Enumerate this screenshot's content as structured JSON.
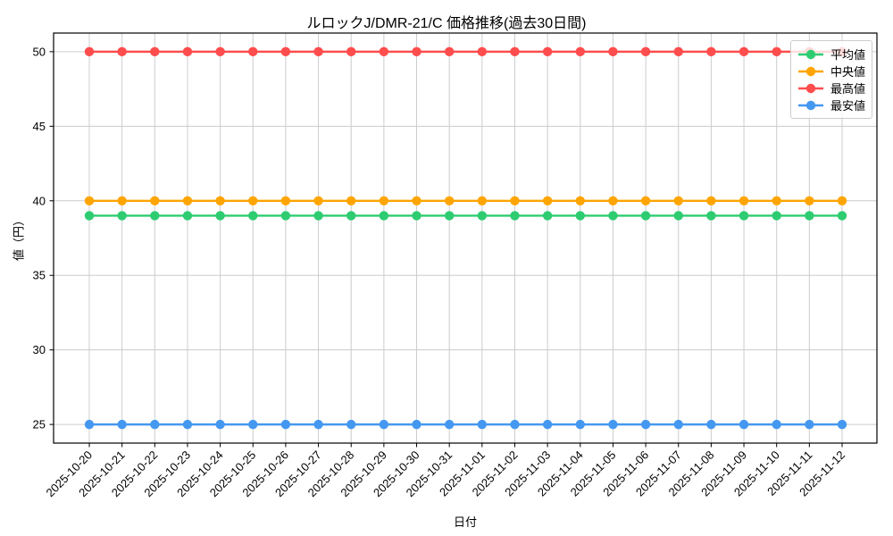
{
  "figure": {
    "title": "ルロックJ/DMR-21/C 価格推移(過去30日間)",
    "xlabel": "日付",
    "ylabel": "値（円）"
  },
  "chart_data": {
    "type": "line",
    "title": "ルロックJ/DMR-21/C 価格推移(過去30日間)",
    "xlabel": "日付",
    "ylabel": "値（円）",
    "x": [
      "2025-10-20",
      "2025-10-21",
      "2025-10-22",
      "2025-10-23",
      "2025-10-24",
      "2025-10-25",
      "2025-10-26",
      "2025-10-27",
      "2025-10-28",
      "2025-10-29",
      "2025-10-30",
      "2025-10-31",
      "2025-11-01",
      "2025-11-02",
      "2025-11-03",
      "2025-11-04",
      "2025-11-05",
      "2025-11-06",
      "2025-11-07",
      "2025-11-08",
      "2025-11-09",
      "2025-11-10",
      "2025-11-11",
      "2025-11-12"
    ],
    "series": [
      {
        "key": "average",
        "name": "平均値",
        "color": "#2ecc71",
        "values": [
          39,
          39,
          39,
          39,
          39,
          39,
          39,
          39,
          39,
          39,
          39,
          39,
          39,
          39,
          39,
          39,
          39,
          39,
          39,
          39,
          39,
          39,
          39,
          39
        ]
      },
      {
        "key": "median",
        "name": "中央値",
        "color": "#ffa502",
        "values": [
          40,
          40,
          40,
          40,
          40,
          40,
          40,
          40,
          40,
          40,
          40,
          40,
          40,
          40,
          40,
          40,
          40,
          40,
          40,
          40,
          40,
          40,
          40,
          40
        ]
      },
      {
        "key": "max",
        "name": "最高値",
        "color": "#ff4d4d",
        "values": [
          50,
          50,
          50,
          50,
          50,
          50,
          50,
          50,
          50,
          50,
          50,
          50,
          50,
          50,
          50,
          50,
          50,
          50,
          50,
          50,
          50,
          50,
          50,
          50
        ]
      },
      {
        "key": "min",
        "name": "最安値",
        "color": "#4498f0",
        "values": [
          25,
          25,
          25,
          25,
          25,
          25,
          25,
          25,
          25,
          25,
          25,
          25,
          25,
          25,
          25,
          25,
          25,
          25,
          25,
          25,
          25,
          25,
          25,
          25
        ]
      }
    ],
    "yticks": [
      25,
      30,
      35,
      40,
      45,
      50
    ],
    "ylim": [
      23.75,
      51.25
    ],
    "grid": true,
    "grid_color": "#cccccc",
    "axis_color": "#000000",
    "background_color": "#ffffff",
    "legend_position": "upper right",
    "marker": "circle"
  }
}
